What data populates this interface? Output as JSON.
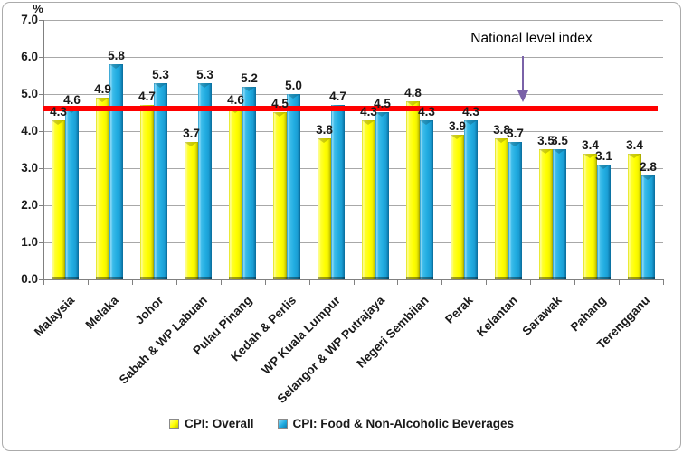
{
  "chart_data": {
    "type": "bar",
    "title": "",
    "unit": "%",
    "categories": [
      "Malaysia",
      "Melaka",
      "Johor",
      "Sabah & WP Labuan",
      "Pulau Pinang",
      "Kedah & Perlis",
      "WP Kuala Lumpur",
      "Selangor & WP Putrajaya",
      "Negeri Sembilan",
      "Perak",
      "Kelantan",
      "Sarawak",
      "Pahang",
      "Terengganu"
    ],
    "series": [
      {
        "name": "CPI: Overall",
        "color": "#FFFF00",
        "values": [
          4.3,
          4.9,
          4.7,
          3.7,
          4.6,
          4.5,
          3.8,
          4.3,
          4.8,
          3.9,
          3.8,
          3.5,
          3.4,
          3.4
        ]
      },
      {
        "name": "CPI: Food & Non-Alcoholic Beverages",
        "color": "#21ACE1",
        "values": [
          4.6,
          5.8,
          5.3,
          5.3,
          5.2,
          5.0,
          4.7,
          4.5,
          4.3,
          4.3,
          3.7,
          3.5,
          3.1,
          2.8
        ]
      }
    ],
    "ylim": [
      0.0,
      7.0
    ],
    "y_tick_labels": [
      "7.0",
      "6.0",
      "5.0",
      "4.0",
      "3.0",
      "2.0",
      "1.0",
      "0.0"
    ],
    "grid": true,
    "legend_position": "bottom",
    "reference_line": {
      "value": 4.6,
      "label": "National level index",
      "color": "#FF0000",
      "arrow_color": "#7A62A8"
    }
  }
}
